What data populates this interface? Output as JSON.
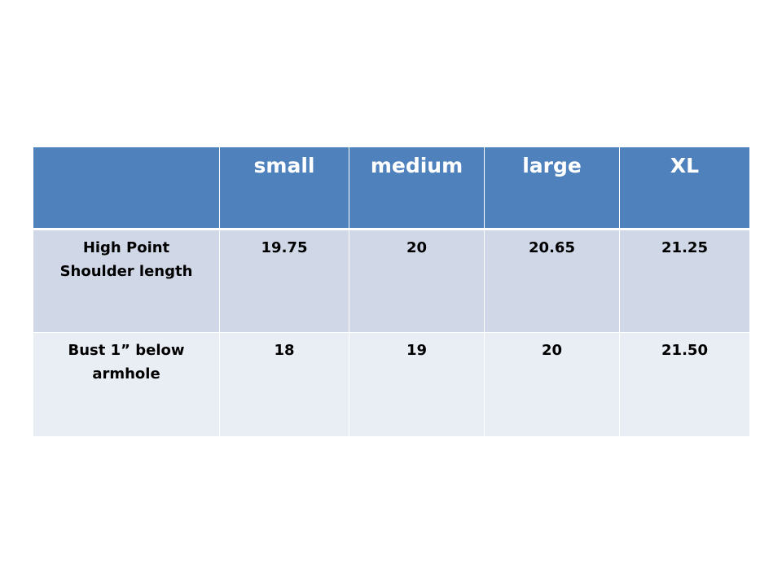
{
  "table": {
    "header_fill": "#4f81bd",
    "columns": [
      "",
      "small",
      "medium",
      "large",
      "XL"
    ],
    "rows": [
      {
        "label_line1": "High Point",
        "label_line2": "Shoulder length",
        "values": [
          "19.75",
          "20",
          "20.65",
          "21.25"
        ]
      },
      {
        "label_line1": "Bust 1” below",
        "label_line2": "armhole",
        "values": [
          "18",
          "19",
          "20",
          "21.50"
        ]
      }
    ]
  }
}
